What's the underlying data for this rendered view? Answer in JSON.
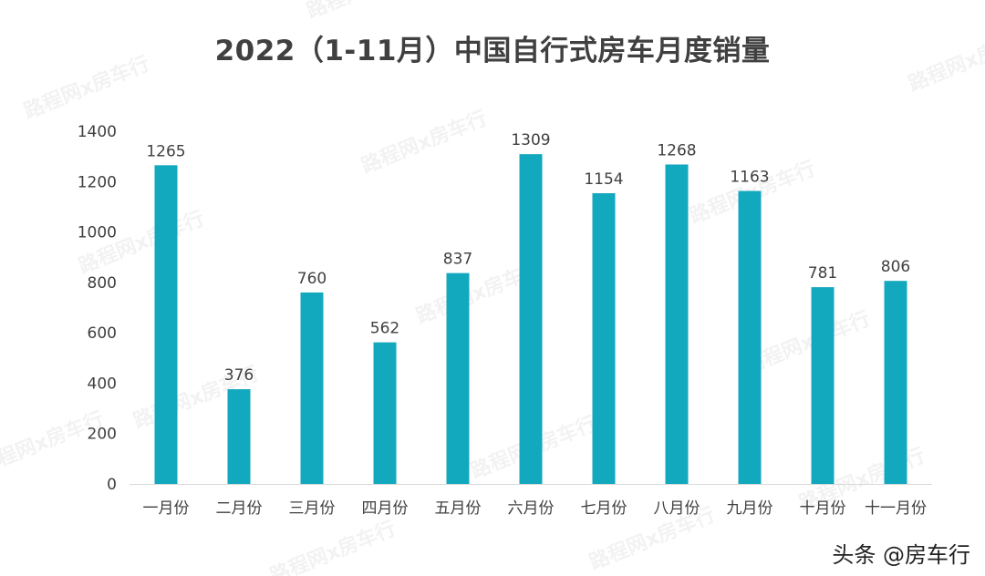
{
  "chart_data": {
    "type": "bar",
    "title": "2022（1-11月）中国自行式房车月度销量",
    "categories": [
      "一月份",
      "二月份",
      "三月份",
      "四月份",
      "五月份",
      "六月份",
      "七月份",
      "八月份",
      "九月份",
      "十月份",
      "十一月份"
    ],
    "values": [
      1265,
      376,
      760,
      562,
      837,
      1309,
      1154,
      1268,
      1163,
      781,
      806
    ],
    "ylim": [
      0,
      1400
    ],
    "yticks": [
      0,
      200,
      400,
      600,
      800,
      1000,
      1200,
      1400
    ],
    "xlabel": "",
    "ylabel": "",
    "grid": false,
    "legend": "none",
    "bar_color": "#12A8BE"
  },
  "watermark": {
    "background_text": "路程网x房车行",
    "credit": "头条 @房车行"
  }
}
